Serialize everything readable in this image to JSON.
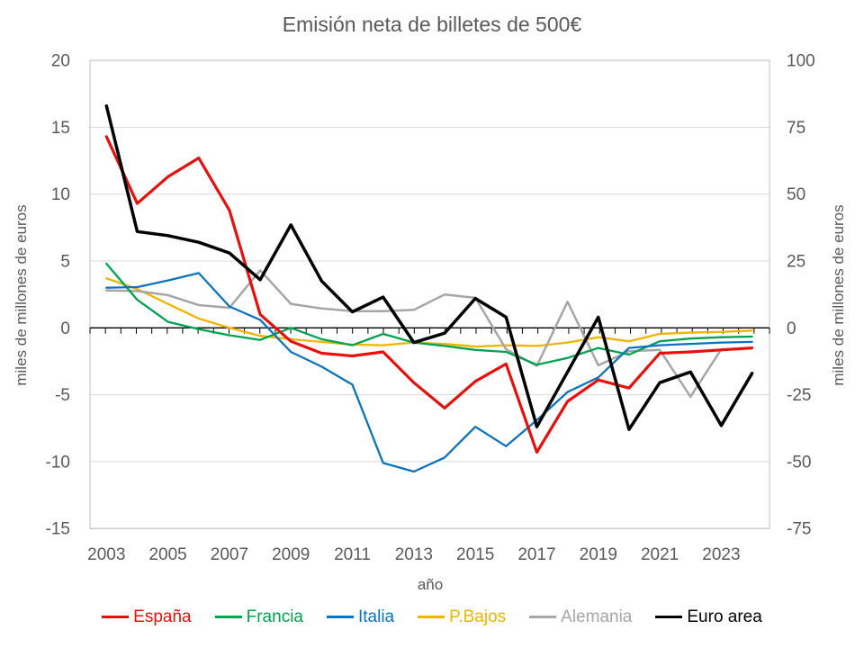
{
  "title": "Emisión neta de billetes de 500€",
  "colors": {
    "text": "#595959",
    "gridline": "#d9d9d9",
    "plot_border": "#bfbfbf",
    "zero_axis": "#000000",
    "background": "#ffffff"
  },
  "chart_data": {
    "type": "line",
    "title": "Emisión neta de billetes de 500€",
    "xlabel": "año",
    "grid": true,
    "legend_position": "bottom",
    "x": [
      2003,
      2004,
      2005,
      2006,
      2007,
      2008,
      2009,
      2010,
      2011,
      2012,
      2013,
      2014,
      2015,
      2016,
      2017,
      2018,
      2019,
      2020,
      2021,
      2022,
      2023,
      2024
    ],
    "x_tick_labels": [
      "2003",
      "2005",
      "2007",
      "2009",
      "2011",
      "2013",
      "2015",
      "2017",
      "2019",
      "2021",
      "2023"
    ],
    "left_axis": {
      "title": "miles de millones de euros",
      "ticks": [
        "20",
        "15",
        "10",
        "5",
        "0",
        "-5",
        "-10",
        "-15"
      ],
      "tick_values": [
        20,
        15,
        10,
        5,
        0,
        -5,
        -10,
        -15
      ],
      "range": [
        -15,
        20
      ]
    },
    "right_axis": {
      "title": "miles de millones de euros",
      "ticks": [
        "100",
        "75",
        "50",
        "25",
        "0",
        "-25",
        "-50",
        "-75"
      ],
      "tick_values": [
        100,
        75,
        50,
        25,
        0,
        -25,
        -50,
        -75
      ],
      "range": [
        -75,
        100
      ]
    },
    "series": [
      {
        "name": "España",
        "color": "#e8100c",
        "axis": "left",
        "width": 3.2,
        "values": [
          14.3,
          9.3,
          11.3,
          12.7,
          8.8,
          1.0,
          -1.0,
          -1.9,
          -2.1,
          -1.8,
          -4.1,
          -6.0,
          -4.0,
          -2.7,
          -9.3,
          -5.5,
          -3.9,
          -4.5,
          -1.9,
          -1.8,
          -1.65,
          -1.5
        ]
      },
      {
        "name": "Francia",
        "color": "#00a34f",
        "axis": "left",
        "width": 2.3,
        "values": [
          4.8,
          2.1,
          0.45,
          -0.1,
          -0.55,
          -0.9,
          0.0,
          -0.85,
          -1.3,
          -0.45,
          -1.1,
          -1.35,
          -1.65,
          -1.8,
          -2.75,
          -2.25,
          -1.5,
          -2.0,
          -1.0,
          -0.8,
          -0.7,
          -0.65
        ]
      },
      {
        "name": "Italia",
        "color": "#0d72c0",
        "axis": "left",
        "width": 2.3,
        "values": [
          3.0,
          3.05,
          3.55,
          4.1,
          1.6,
          0.6,
          -1.8,
          -2.9,
          -4.25,
          -10.1,
          -10.75,
          -9.7,
          -7.4,
          -8.85,
          -6.9,
          -4.8,
          -3.7,
          -1.5,
          -1.3,
          -1.2,
          -1.1,
          -1.05
        ]
      },
      {
        "name": "P.Bajos",
        "color": "#eeb500",
        "axis": "left",
        "width": 2.3,
        "values": [
          3.7,
          2.9,
          1.8,
          0.7,
          0.0,
          -0.6,
          -0.85,
          -1.05,
          -1.25,
          -1.3,
          -1.1,
          -1.2,
          -1.4,
          -1.3,
          -1.35,
          -1.1,
          -0.7,
          -1.0,
          -0.45,
          -0.35,
          -0.3,
          -0.2
        ]
      },
      {
        "name": "Alemania",
        "color": "#a6a6a6",
        "axis": "left",
        "width": 2.5,
        "values": [
          2.8,
          2.75,
          2.45,
          1.7,
          1.5,
          4.3,
          1.8,
          1.45,
          1.25,
          1.25,
          1.35,
          2.5,
          2.25,
          -1.6,
          -2.85,
          1.95,
          -2.8,
          -1.75,
          -1.65,
          -5.15,
          -1.6,
          -1.5
        ]
      },
      {
        "name": "Euro area",
        "color": "#000000",
        "axis": "right",
        "width": 3.5,
        "values": [
          83,
          36,
          34.5,
          32,
          28,
          18,
          38.5,
          17.5,
          6,
          11.5,
          -5.5,
          -2,
          11,
          4,
          -37,
          -16.5,
          4,
          -38,
          -20.5,
          -16.5,
          -36.5,
          -17
        ]
      }
    ]
  }
}
